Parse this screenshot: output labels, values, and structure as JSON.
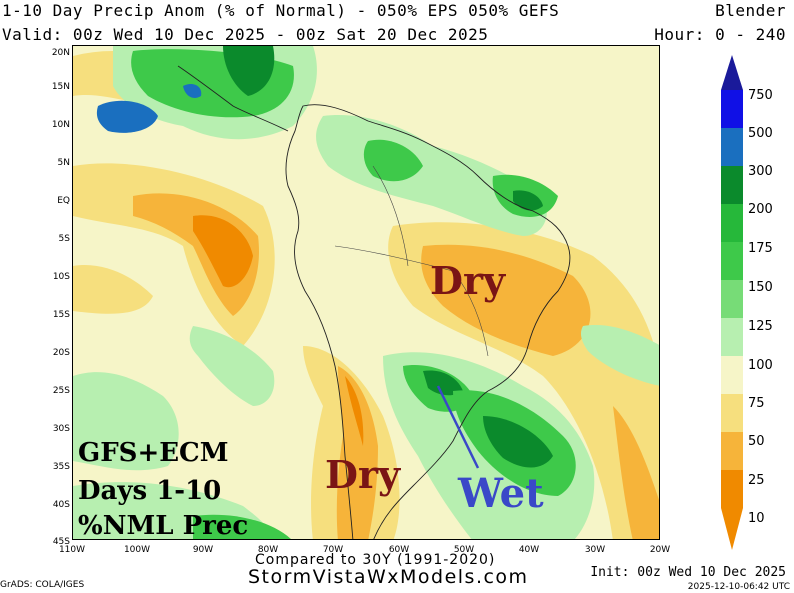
{
  "header": {
    "title": "1-10 Day Precip Anom (% of Normal) - 050% EPS 050% GEFS",
    "product": "Blender",
    "valid": "Valid: 00z Wed 10 Dec 2025 - 00z Sat 20 Dec 2025",
    "hour": "Hour: 0 - 240"
  },
  "map": {
    "lat_labels": [
      "20N",
      "15N",
      "10N",
      "5N",
      "EQ",
      "5S",
      "10S",
      "15S",
      "20S",
      "25S",
      "30S",
      "35S",
      "40S",
      "45S"
    ],
    "lon_labels": [
      "110W",
      "100W",
      "90W",
      "80W",
      "70W",
      "60W",
      "50W",
      "40W",
      "30W",
      "20W"
    ],
    "annotations": {
      "dry_north": "Dry",
      "dry_south": "Dry",
      "wet": "Wet"
    },
    "box_text": [
      "GFS+ECM",
      "Days 1-10",
      "%NML Prec"
    ]
  },
  "colorbar": {
    "levels": [
      "750",
      "500",
      "300",
      "200",
      "175",
      "150",
      "125",
      "100",
      "75",
      "50",
      "25",
      "10"
    ],
    "colors": [
      "#1a1a9a",
      "#1010e6",
      "#1a6fbf",
      "#0b8a2c",
      "#26b83a",
      "#3ec94a",
      "#77dc77",
      "#b7efb0",
      "#f6f5c8",
      "#f6df7e",
      "#f6b43a",
      "#f08a00"
    ]
  },
  "footer": {
    "compared": "Compared to 30Y (1991-2020)",
    "site": "StormVistaWxModels.com",
    "grads": "GrADS: COLA/IGES",
    "init": "Init: 00z Wed 10 Dec 2025",
    "stamp": "2025-12-10-06:42 UTC"
  }
}
